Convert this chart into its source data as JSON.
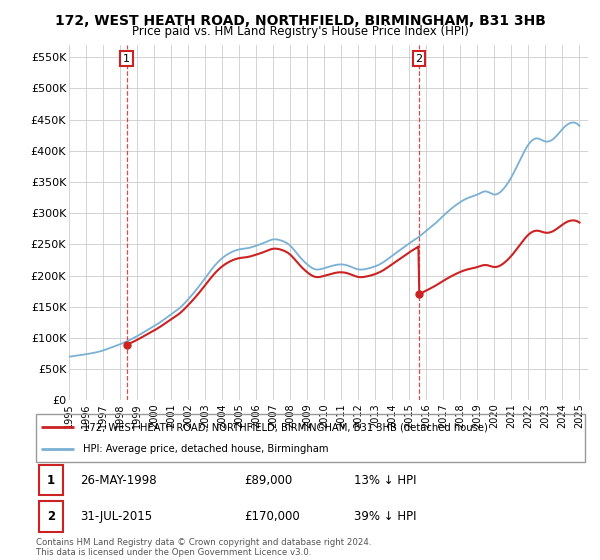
{
  "title": "172, WEST HEATH ROAD, NORTHFIELD, BIRMINGHAM, B31 3HB",
  "subtitle": "Price paid vs. HM Land Registry's House Price Index (HPI)",
  "ylim": [
    0,
    570000
  ],
  "yticks": [
    0,
    50000,
    100000,
    150000,
    200000,
    250000,
    300000,
    350000,
    400000,
    450000,
    500000,
    550000
  ],
  "ytick_labels": [
    "£0",
    "£50K",
    "£100K",
    "£150K",
    "£200K",
    "£250K",
    "£300K",
    "£350K",
    "£400K",
    "£450K",
    "£500K",
    "£550K"
  ],
  "hpi_color": "#7ab0d4",
  "price_color": "#cc2222",
  "transaction1_year": 1998.38,
  "transaction1_price": 89000,
  "transaction2_year": 2015.57,
  "transaction2_price": 170000,
  "legend_label1": "172, WEST HEATH ROAD, NORTHFIELD, BIRMINGHAM, B31 3HB (detached house)",
  "legend_label2": "HPI: Average price, detached house, Birmingham",
  "table_row1": [
    "1",
    "26-MAY-1998",
    "£89,000",
    "13% ↓ HPI"
  ],
  "table_row2": [
    "2",
    "31-JUL-2015",
    "£170,000",
    "39% ↓ HPI"
  ],
  "footer": "Contains HM Land Registry data © Crown copyright and database right 2024.\nThis data is licensed under the Open Government Licence v3.0.",
  "bg_color": "#ffffff",
  "grid_color": "#cccccc",
  "hpi_data_years": [
    1995,
    1995.5,
    1996,
    1996.5,
    1997,
    1997.5,
    1998,
    1998.5,
    1999,
    1999.5,
    2000,
    2000.5,
    2001,
    2001.5,
    2002,
    2002.5,
    2003,
    2003.5,
    2004,
    2004.5,
    2005,
    2005.5,
    2006,
    2006.5,
    2007,
    2007.5,
    2008,
    2008.5,
    2009,
    2009.5,
    2010,
    2010.5,
    2011,
    2011.5,
    2012,
    2012.5,
    2013,
    2013.5,
    2014,
    2014.5,
    2015,
    2015.5,
    2016,
    2016.5,
    2017,
    2017.5,
    2018,
    2018.5,
    2019,
    2019.5,
    2020,
    2020.5,
    2021,
    2021.5,
    2022,
    2022.5,
    2023,
    2023.5,
    2024,
    2024.5,
    2025
  ],
  "hpi_data_vals": [
    70000,
    72000,
    74000,
    76500,
    80000,
    85000,
    90000,
    96000,
    103000,
    111000,
    119000,
    128000,
    138000,
    148000,
    162000,
    178000,
    196000,
    214000,
    228000,
    237000,
    242000,
    244000,
    248000,
    253000,
    258000,
    256000,
    248000,
    232000,
    218000,
    210000,
    212000,
    216000,
    218000,
    215000,
    210000,
    211000,
    215000,
    222000,
    232000,
    242000,
    252000,
    261000,
    272000,
    283000,
    296000,
    308000,
    318000,
    325000,
    330000,
    335000,
    330000,
    338000,
    358000,
    385000,
    410000,
    420000,
    415000,
    420000,
    435000,
    445000,
    440000
  ]
}
